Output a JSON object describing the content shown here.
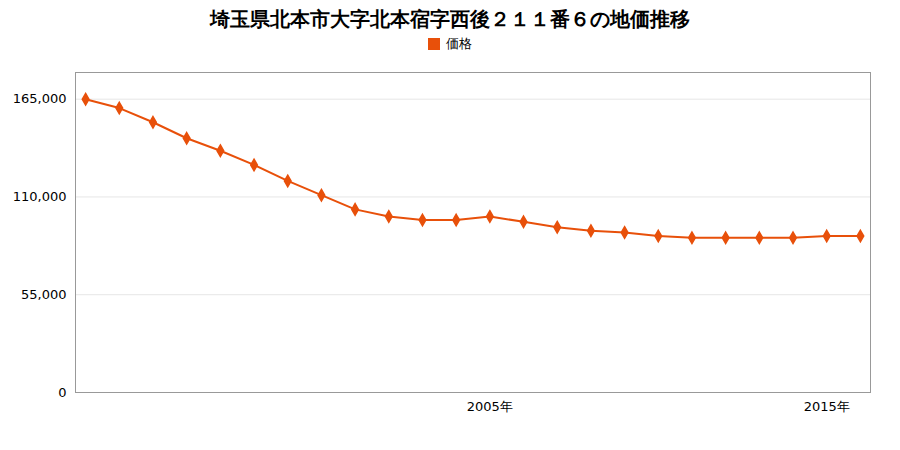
{
  "chart_data": {
    "type": "line",
    "title": "埼玉県北本市大字北本宿字西後２１１番６の地価推移",
    "x": [
      1993,
      1994,
      1995,
      1996,
      1997,
      1998,
      1999,
      2000,
      2001,
      2002,
      2003,
      2004,
      2005,
      2006,
      2007,
      2008,
      2009,
      2010,
      2011,
      2012,
      2013,
      2014,
      2015,
      2016
    ],
    "series": [
      {
        "name": "価格",
        "color": "#e8500a",
        "marker": "diamond",
        "values": [
          165000,
          160000,
          152000,
          143000,
          136000,
          128000,
          119000,
          111000,
          103000,
          99000,
          97000,
          97000,
          99000,
          96000,
          93000,
          91000,
          90000,
          88000,
          87000,
          87000,
          87000,
          87000,
          88000,
          88000
        ]
      }
    ],
    "xlim": [
      1992.7,
      2016.3
    ],
    "xticks": [
      {
        "value": 2005,
        "label": "2005年"
      },
      {
        "value": 2015,
        "label": "2015年"
      }
    ],
    "ylim": [
      0,
      180000
    ],
    "yticks": [
      0,
      {
        "value": 55000,
        "label": "55,000"
      },
      {
        "value": 110000,
        "label": "110,000"
      },
      {
        "value": 165000,
        "label": "165,000"
      }
    ],
    "grid": true,
    "legend": "top"
  }
}
